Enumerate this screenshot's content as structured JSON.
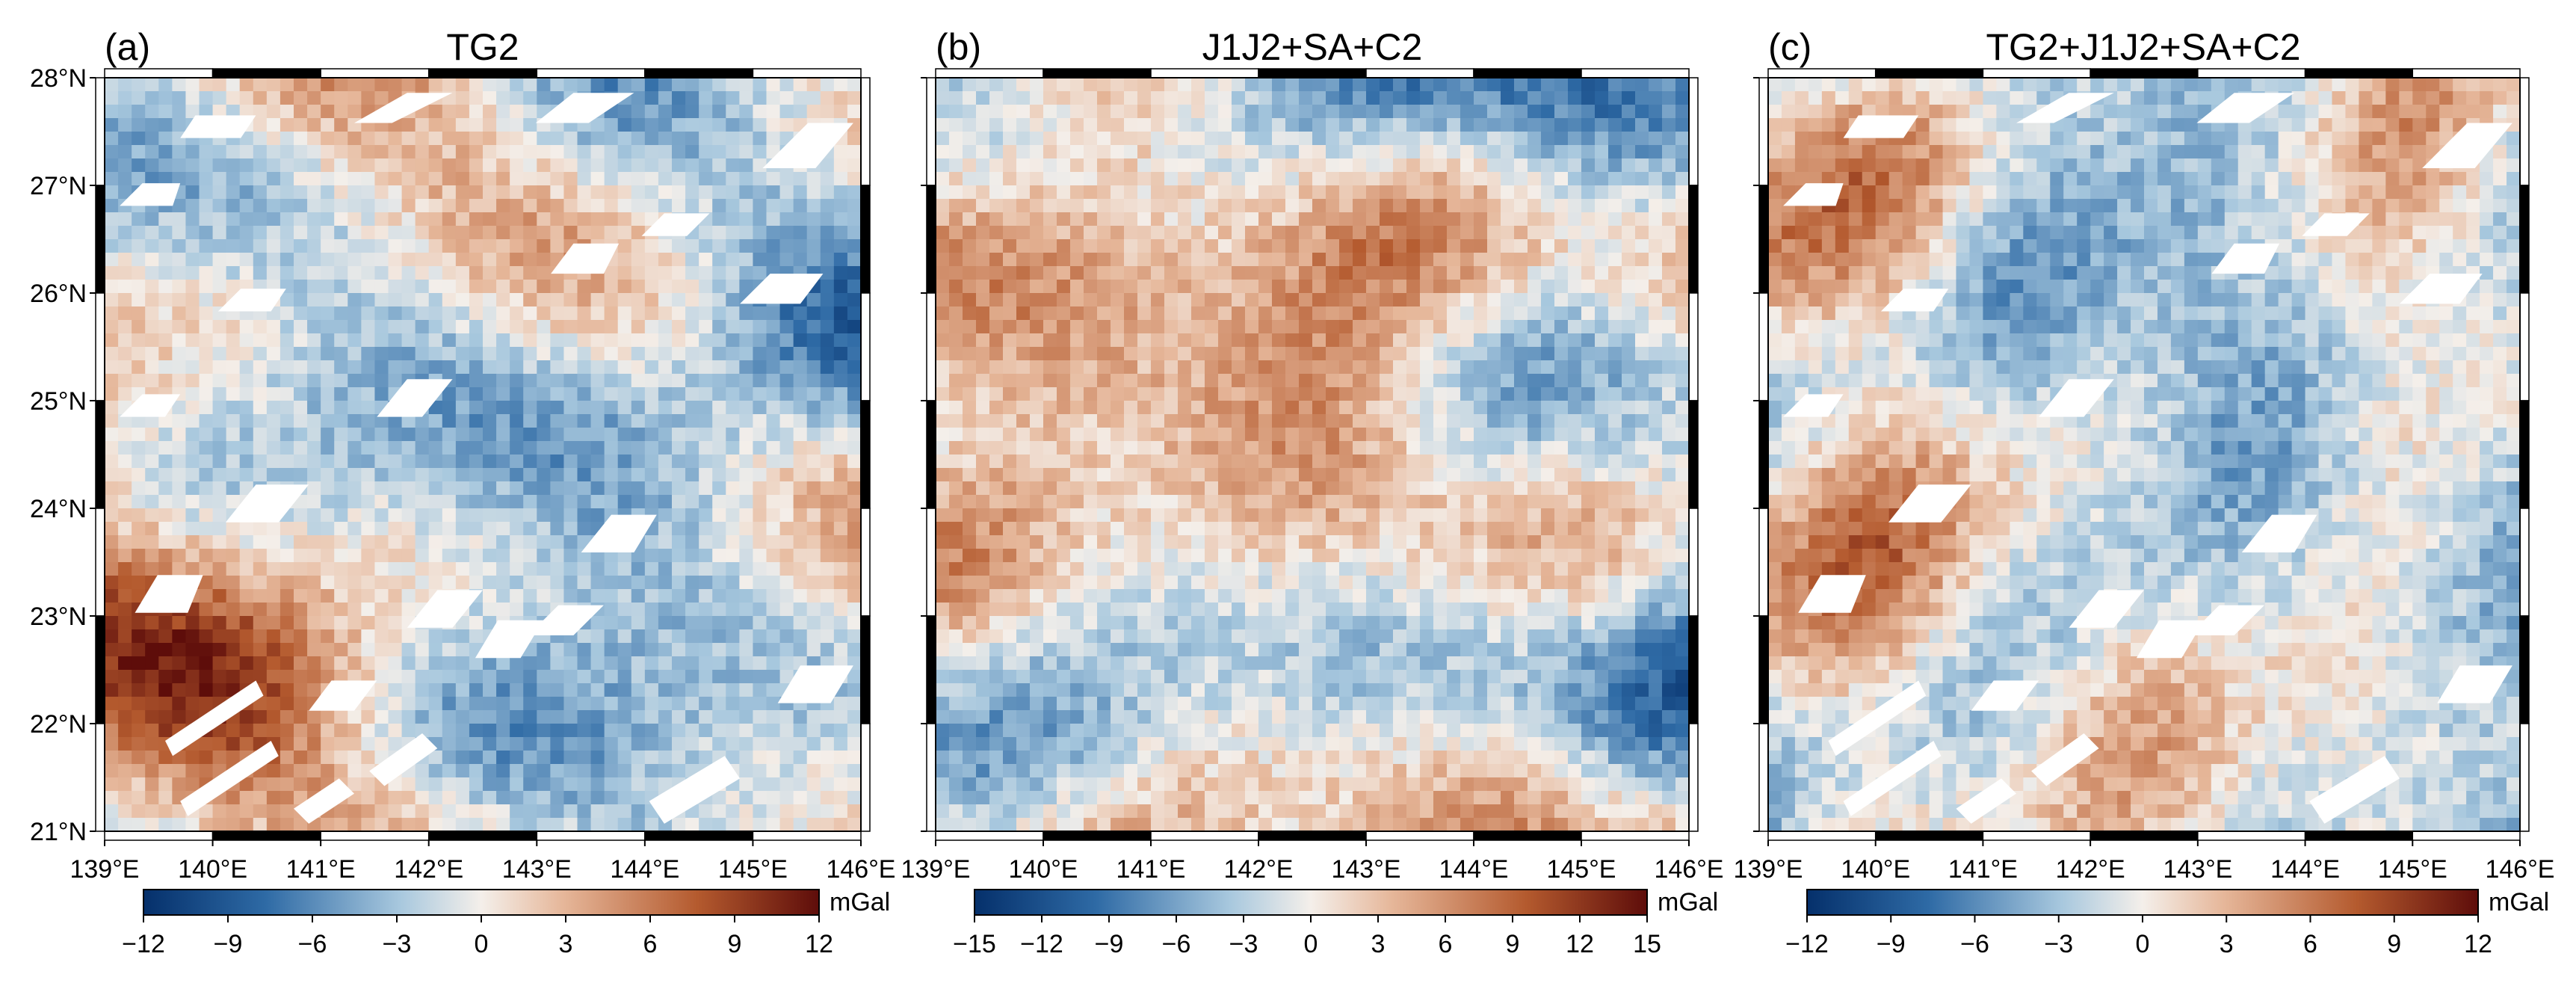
{
  "colors": {
    "neg_strong": "#05306b",
    "neg_mid": "#2e6aa5",
    "neg_light": "#a8c8de",
    "zero": "#f4efea",
    "pos_light": "#e6b79a",
    "pos_mid": "#b45a2e",
    "pos_strong": "#5e0d0a",
    "frame": "#000000",
    "gap": "#ffffff"
  },
  "chart_data": [
    {
      "type": "heatmap",
      "panel": "(a)",
      "title": "TG2",
      "units": "mGal",
      "lon_range": [
        139,
        146
      ],
      "lat_range": [
        21,
        28
      ],
      "x_ticks": [
        "139°E",
        "140°E",
        "141°E",
        "142°E",
        "143°E",
        "144°E",
        "145°E",
        "146°E"
      ],
      "y_ticks": [
        "28°N",
        "27°N",
        "26°N",
        "25°N",
        "24°N",
        "23°N",
        "22°N",
        "21°N"
      ],
      "colorbar_range": [
        -12,
        12
      ],
      "colorbar_ticks": [
        "−12",
        "−9",
        "−6",
        "−3",
        "0",
        "3",
        "6",
        "9",
        "12"
      ],
      "has_data_gaps": true,
      "noise_seed": 11
    },
    {
      "type": "heatmap",
      "panel": "(b)",
      "title": "J1J2+SA+C2",
      "units": "mGal",
      "lon_range": [
        139,
        146
      ],
      "lat_range": [
        21,
        28
      ],
      "x_ticks": [
        "139°E",
        "140°E",
        "141°E",
        "142°E",
        "143°E",
        "144°E",
        "145°E",
        "146°E"
      ],
      "y_ticks": [
        "28°N",
        "27°N",
        "26°N",
        "25°N",
        "24°N",
        "23°N",
        "22°N",
        "21°N"
      ],
      "colorbar_range": [
        -15,
        15
      ],
      "colorbar_ticks": [
        "−15",
        "−12",
        "−9",
        "−6",
        "−3",
        "0",
        "3",
        "6",
        "9",
        "12",
        "15"
      ],
      "has_data_gaps": false,
      "noise_seed": 29
    },
    {
      "type": "heatmap",
      "panel": "(c)",
      "title": "TG2+J1J2+SA+C2",
      "units": "mGal",
      "lon_range": [
        139,
        146
      ],
      "lat_range": [
        21,
        28
      ],
      "x_ticks": [
        "139°E",
        "140°E",
        "141°E",
        "142°E",
        "143°E",
        "144°E",
        "145°E",
        "146°E"
      ],
      "y_ticks": [
        "28°N",
        "27°N",
        "26°N",
        "25°N",
        "24°N",
        "23°N",
        "22°N",
        "21°N"
      ],
      "colorbar_range": [
        -12,
        12
      ],
      "colorbar_ticks": [
        "−12",
        "−9",
        "−6",
        "−3",
        "0",
        "3",
        "6",
        "9",
        "12"
      ],
      "has_data_gaps": true,
      "noise_seed": 47
    }
  ]
}
